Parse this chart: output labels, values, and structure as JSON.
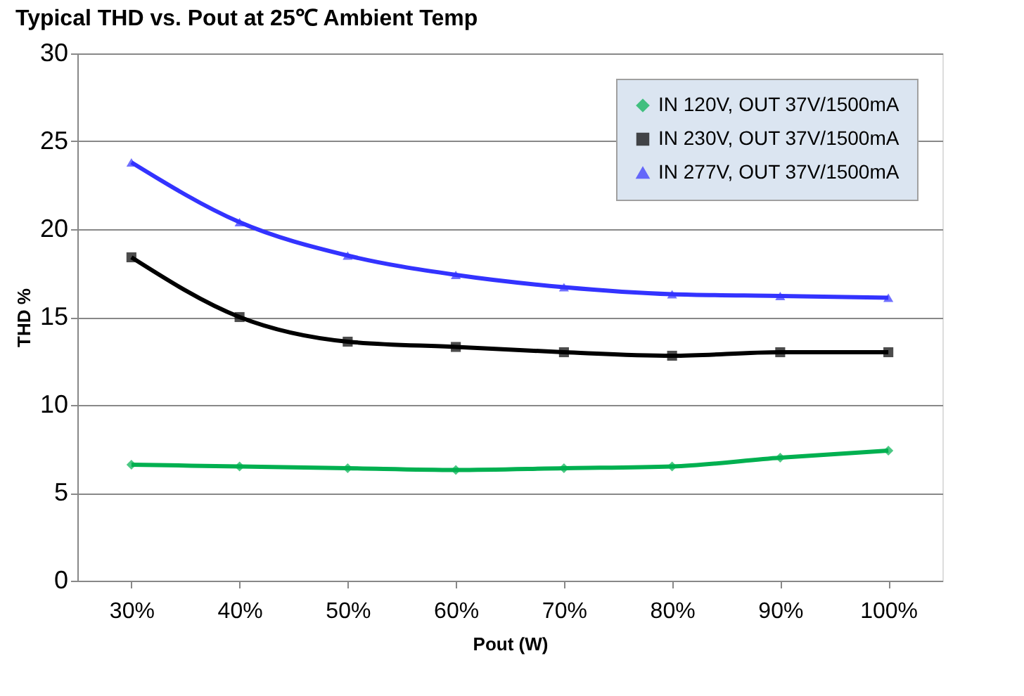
{
  "chart_data": {
    "type": "line",
    "title": "Typical THD vs. Pout at 25℃ Ambient Temp",
    "xlabel": "Pout (W)",
    "ylabel": "THD %",
    "categories": [
      "30%",
      "40%",
      "50%",
      "60%",
      "70%",
      "80%",
      "90%",
      "100%"
    ],
    "series": [
      {
        "name": "IN 120V, OUT 37V/1500mA",
        "color": "#00b050",
        "marker": "diamond",
        "values": [
          6.6,
          6.5,
          6.4,
          6.3,
          6.4,
          6.5,
          7.0,
          7.4
        ]
      },
      {
        "name": "IN 230V, OUT 37V/1500mA",
        "color": "#000000",
        "marker": "square",
        "values": [
          18.4,
          15.0,
          13.6,
          13.3,
          13.0,
          12.8,
          13.0,
          13.0
        ]
      },
      {
        "name": "IN 277V, OUT 37V/1500mA",
        "color": "#3333ff",
        "marker": "triangle",
        "values": [
          23.8,
          20.4,
          18.5,
          17.4,
          16.7,
          16.3,
          16.2,
          16.1
        ]
      }
    ],
    "ylim": [
      0,
      30
    ],
    "yticks": [
      0,
      5,
      10,
      15,
      20,
      25,
      30
    ],
    "grid": "y",
    "legend": "top right"
  }
}
